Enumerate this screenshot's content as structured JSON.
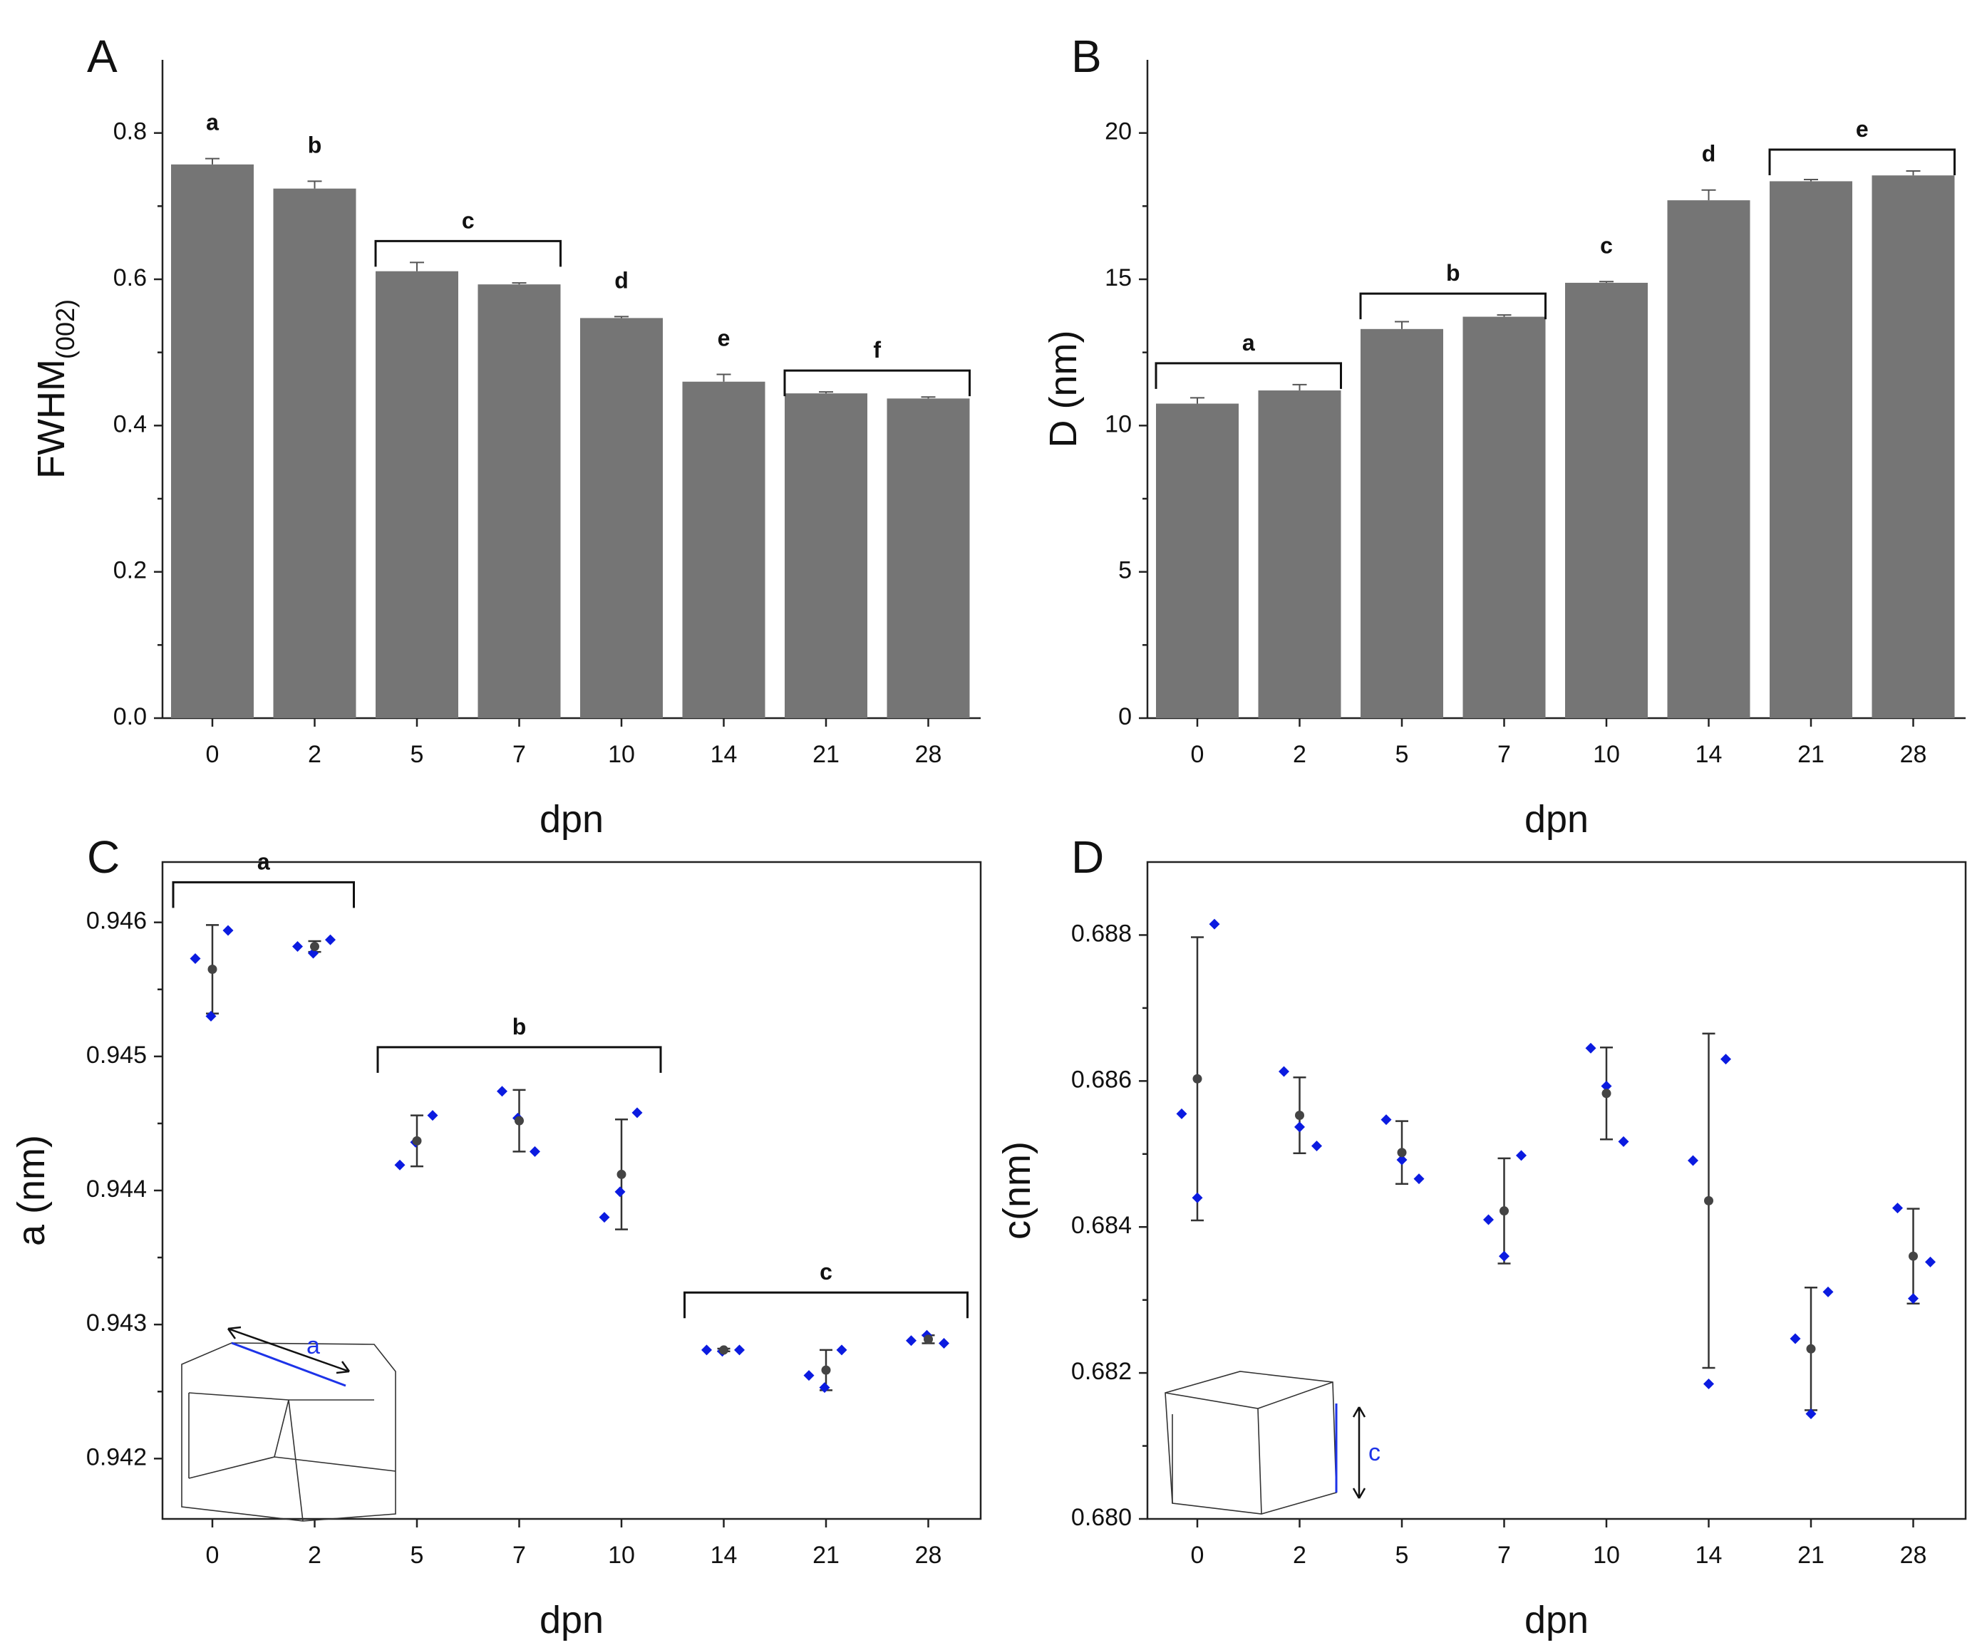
{
  "chart_data": [
    {
      "panel": "A",
      "type": "bar",
      "categories": [
        "0",
        "2",
        "5",
        "7",
        "10",
        "14",
        "21",
        "28"
      ],
      "values": [
        0.757,
        0.724,
        0.611,
        0.593,
        0.547,
        0.46,
        0.444,
        0.437
      ],
      "errors": [
        0.008,
        0.01,
        0.012,
        0.002,
        0.002,
        0.01,
        0.002,
        0.002
      ],
      "xlabel": "dpn",
      "ylabel_main": "FWHM",
      "ylabel_sub": "(002)",
      "ylim": [
        0,
        0.9
      ],
      "yticks": [
        "0.0",
        "0.2",
        "0.4",
        "0.6",
        "0.8"
      ],
      "letters": [
        {
          "text": "a",
          "from": 0,
          "to": 0
        },
        {
          "text": "b",
          "from": 1,
          "to": 1
        },
        {
          "text": "c",
          "from": 2,
          "to": 3
        },
        {
          "text": "d",
          "from": 4,
          "to": 4
        },
        {
          "text": "e",
          "from": 5,
          "to": 5
        },
        {
          "text": "f",
          "from": 6,
          "to": 7
        }
      ]
    },
    {
      "panel": "B",
      "type": "bar",
      "categories": [
        "0",
        "2",
        "5",
        "7",
        "10",
        "14",
        "21",
        "28"
      ],
      "values": [
        10.75,
        11.2,
        13.3,
        13.72,
        14.88,
        17.7,
        18.35,
        18.55
      ],
      "errors": [
        0.2,
        0.2,
        0.25,
        0.06,
        0.04,
        0.35,
        0.06,
        0.15
      ],
      "xlabel": "dpn",
      "ylabel": "D (nm)",
      "ylim": [
        0,
        22.5
      ],
      "yticks": [
        "0",
        "5",
        "10",
        "15",
        "20"
      ],
      "letters": [
        {
          "text": "a",
          "from": 0,
          "to": 1
        },
        {
          "text": "b",
          "from": 2,
          "to": 3
        },
        {
          "text": "c",
          "from": 4,
          "to": 4
        },
        {
          "text": "d",
          "from": 5,
          "to": 5
        },
        {
          "text": "e",
          "from": 6,
          "to": 7
        }
      ]
    },
    {
      "panel": "C",
      "type": "scatter",
      "categories": [
        "0",
        "2",
        "5",
        "7",
        "10",
        "14",
        "21",
        "28"
      ],
      "points": [
        [
          0.94573,
          0.94594,
          0.9453
        ],
        [
          0.94582,
          0.94587,
          0.94577
        ],
        [
          0.94419,
          0.94456,
          0.94436
        ],
        [
          0.94474,
          0.94429,
          0.94454
        ],
        [
          0.9438,
          0.94458,
          0.94399
        ],
        [
          0.94281,
          0.94281,
          0.9428
        ],
        [
          0.94262,
          0.94281,
          0.94253
        ],
        [
          0.94288,
          0.94286,
          0.94292
        ]
      ],
      "means": [
        0.94565,
        0.94582,
        0.94437,
        0.94452,
        0.94412,
        0.94281,
        0.94266,
        0.94289
      ],
      "sd": [
        0.00033,
        4e-05,
        0.00019,
        0.00023,
        0.00041,
        1e-05,
        0.00015,
        3e-05
      ],
      "xlabel": "dpn",
      "ylabel": "a (nm)",
      "ylim": [
        0.94155,
        0.94645
      ],
      "yticks": [
        "0.942",
        "0.943",
        "0.944",
        "0.945",
        "0.946"
      ],
      "inset_label": "a",
      "letters": [
        {
          "text": "a",
          "from": 0,
          "to": 1
        },
        {
          "text": "b",
          "from": 2,
          "to": 4
        },
        {
          "text": "c",
          "from": 5,
          "to": 7
        }
      ]
    },
    {
      "panel": "D",
      "type": "scatter",
      "categories": [
        "0",
        "2",
        "5",
        "7",
        "10",
        "14",
        "21",
        "28"
      ],
      "points": [
        [
          0.6844,
          0.68555,
          0.68815
        ],
        [
          0.68537,
          0.68613,
          0.68511
        ],
        [
          0.68492,
          0.68547,
          0.68466
        ],
        [
          0.6836,
          0.6841,
          0.68498
        ],
        [
          0.68593,
          0.68645,
          0.68517
        ],
        [
          0.68185,
          0.68491,
          0.6863
        ],
        [
          0.68144,
          0.68247,
          0.68311
        ],
        [
          0.68302,
          0.68426,
          0.68352
        ]
      ],
      "means": [
        0.68603,
        0.68553,
        0.68502,
        0.68422,
        0.68583,
        0.68436,
        0.68233,
        0.6836
      ],
      "sd": [
        0.00194,
        0.00052,
        0.00043,
        0.00072,
        0.00063,
        0.00229,
        0.00084,
        0.00065
      ],
      "xlabel": "dpn",
      "ylabel": "c(nm)",
      "ylim": [
        0.68,
        0.689
      ],
      "yticks": [
        "0.680",
        "0.682",
        "0.684",
        "0.686",
        "0.688"
      ],
      "inset_label": "c"
    }
  ]
}
